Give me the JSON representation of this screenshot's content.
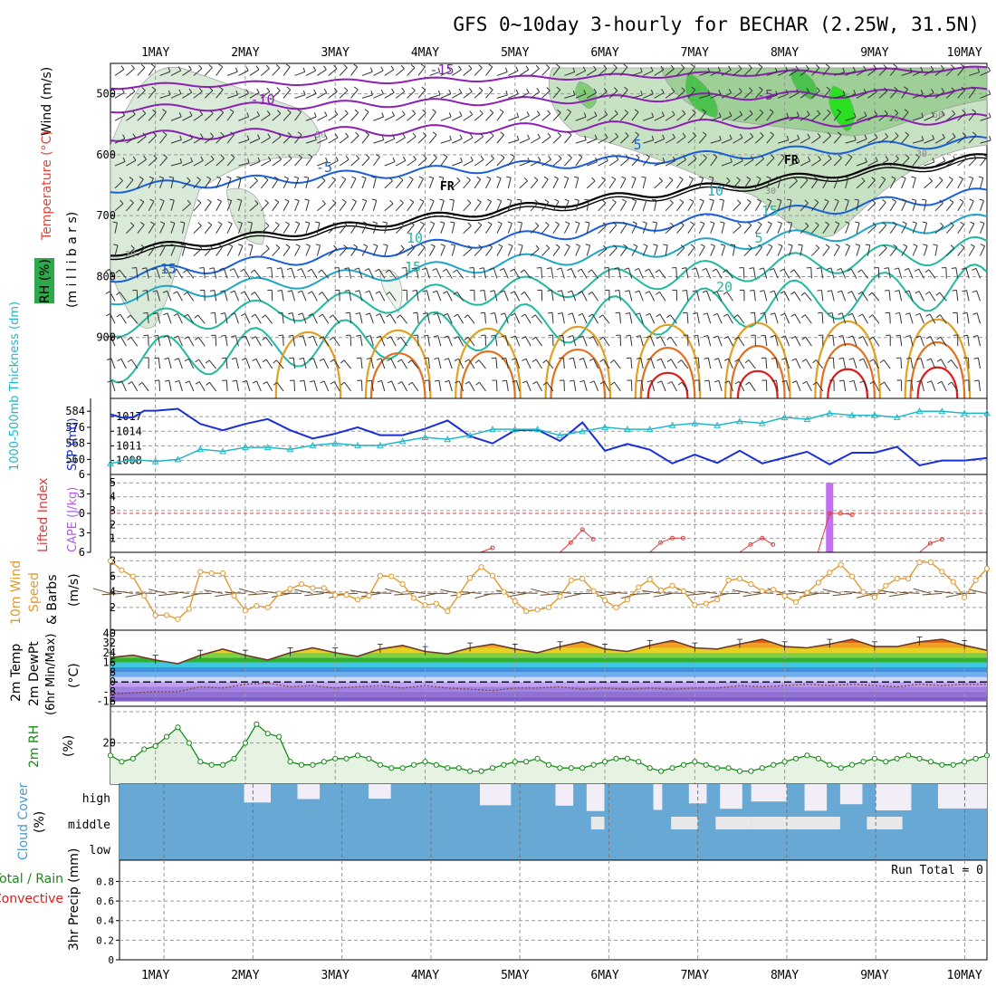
{
  "title": "GFS 0~10day 3-hourly for BECHAR (2.25W, 31.5N)",
  "x_axis": {
    "dates": [
      "1MAY",
      "2MAY",
      "3MAY",
      "4MAY",
      "5MAY",
      "6MAY",
      "7MAY",
      "8MAY",
      "9MAY",
      "10MAY"
    ],
    "start_day": 0.5,
    "end_day": 10.25
  },
  "panels": {
    "upper_air": {
      "ylabel_wind": "Wind (m/s)",
      "ylabel_temp": "Temperature (°C)",
      "ylabel_rh": "RH (%)",
      "ylabel_p": "(m i l l i b a r s)",
      "pressure_ticks": [
        "500",
        "600",
        "700",
        "800",
        "900"
      ],
      "freezing_label": "FR",
      "isotherm_labels": [
        "-15",
        "-10",
        "-5",
        "-5",
        "5",
        "10",
        "10",
        "15",
        "15",
        "20",
        "5",
        "15"
      ],
      "rh_labels": [
        "50",
        "30",
        "30",
        "50",
        "30",
        "50"
      ]
    },
    "slp": {
      "ylabel_thick": "1000-500mb Thickness (dm)",
      "ylabel_slp": "SLP (mb)",
      "thick_ticks": [
        "584",
        "576",
        "568",
        "560"
      ],
      "slp_ticks": [
        "1017",
        "1014",
        "1011",
        "1008"
      ]
    },
    "cape": {
      "ylabel_li": "Lifted Index",
      "ylabel_cape": "CAPE (J/kg)",
      "li_ticks": [
        "-6",
        "-3",
        "0",
        "3",
        "6"
      ],
      "cape_ticks": [
        "5",
        "4",
        "3",
        "2",
        "1"
      ]
    },
    "wind10m": {
      "ylabel_a": "10m Wind",
      "ylabel_b": "Speed",
      "ylabel_c": "& Barbs",
      "ylabel_d": "(m/s)",
      "ticks": [
        "8",
        "6",
        "4",
        "2"
      ]
    },
    "temp2m": {
      "ylabel_a": "2m Temp",
      "ylabel_b": "2m DewPt",
      "ylabel_c": "(6hr Min/Max)",
      "ylabel_d": "(°C)",
      "ticks": [
        "40",
        "32",
        "24",
        "16",
        "8",
        "0",
        "-8",
        "-16"
      ]
    },
    "rh2m": {
      "ylabel_a": "2m RH",
      "ylabel_b": "(%)",
      "ticks": [
        "20"
      ]
    },
    "cloud": {
      "ylabel_a": "Cloud Cover",
      "ylabel_b": "(%)",
      "levels": [
        "high",
        "middle",
        "low"
      ]
    },
    "precip": {
      "ylabel_a": "Total / Rain",
      "ylabel_b": "Convective",
      "ylabel_c": "3hr Precip (mm)",
      "ticks": [
        "0.8",
        "0.6",
        "0.4",
        "0.2",
        "0"
      ],
      "run_total": "Run Total = 0"
    }
  },
  "colors": {
    "freezing": "#000000",
    "neg_isotherm": "#8c1fb4",
    "cool_isotherm": "#1a5fd6",
    "mild_isotherm": "#1fa5c8",
    "warm_isotherm": "#22b8a0",
    "hot_isotherm": "#e0a020",
    "hotter_isotherm": "#e07020",
    "hottest_isotherm": "#e01a1a",
    "slp_line": "#1a2fd8",
    "thickness_line": "#20b8c8",
    "lifted_index": "#e03a3a",
    "cape_bar": "#c070f0",
    "wind_speed": "#e09a30",
    "rh_line": "#1a8a1a",
    "cloud_fill": "#68a8d4"
  },
  "chart_data": [
    {
      "type": "line",
      "title": "",
      "xlabel": "",
      "ylabel": "SLP (mb)",
      "series": [
        {
          "name": "SLP (mb)",
          "x": [
            0.5,
            0.625,
            0.75,
            0.875,
            1.0,
            1.25,
            1.5,
            1.75,
            2.0,
            2.25,
            2.5,
            2.75,
            3.0,
            3.25,
            3.5,
            3.75,
            4.0,
            4.25,
            4.5,
            4.75,
            5.0,
            5.25,
            5.5,
            5.75,
            6.0,
            6.25,
            6.5,
            6.75,
            7.0,
            7.25,
            7.5,
            7.75,
            8.0,
            8.25,
            8.5,
            8.75,
            9.0,
            9.25,
            9.5,
            9.75,
            10.0,
            10.25
          ],
          "values": [
            1017.5,
            1016.8,
            1016.8,
            1018.2,
            1018.2,
            1018.6,
            1015.5,
            1014.2,
            1015.5,
            1016.5,
            1014.2,
            1012.5,
            1013.5,
            1014.8,
            1013.2,
            1013.2,
            1014.5,
            1016.2,
            1013.0,
            1011.5,
            1014.2,
            1014.3,
            1012.0,
            1015.8,
            1010.0,
            1011.4,
            1010.2,
            1007.4,
            1009.2,
            1007.5,
            1010.0,
            1007.4,
            1008.6,
            1009.8,
            1007.2,
            1009.6,
            1009.6,
            1010.8,
            1007.0,
            1008.0,
            1008.0,
            1008.5
          ]
        },
        {
          "name": "1000-500mb Thickness (dm)",
          "x": [
            0.5,
            0.75,
            1.0,
            1.25,
            1.5,
            1.75,
            2.0,
            2.25,
            2.5,
            2.75,
            3.0,
            3.25,
            3.5,
            3.75,
            4.0,
            4.25,
            4.5,
            4.75,
            5.0,
            5.25,
            5.5,
            5.75,
            6.0,
            6.25,
            6.5,
            6.75,
            7.0,
            7.25,
            7.5,
            7.75,
            8.0,
            8.25,
            8.5,
            8.75,
            9.0,
            9.25,
            9.5,
            9.75,
            10.0,
            10.25
          ],
          "values": [
            558,
            560,
            559,
            560,
            565,
            564,
            566,
            566,
            565,
            567,
            568,
            567,
            567,
            569,
            571,
            570,
            572,
            575,
            575,
            575,
            572,
            574,
            576,
            575,
            575,
            577,
            578,
            577,
            579,
            578,
            581,
            580,
            583,
            582,
            582,
            581,
            584,
            584,
            583,
            583
          ]
        }
      ]
    },
    {
      "type": "line",
      "title": "",
      "xlabel": "",
      "ylabel": "Lifted Index",
      "series": [
        {
          "name": "Lifted Index",
          "x": [
            4.62,
            4.75,
            5.5,
            5.62,
            5.75,
            5.87,
            6.5,
            6.62,
            6.75,
            6.87,
            7.5,
            7.62,
            7.75,
            7.87,
            8.37,
            8.5,
            8.62,
            8.75,
            8.87,
            9.5,
            9.62,
            9.75,
            9.87
          ],
          "values": [
            6,
            5.3,
            6,
            4.5,
            2.5,
            4.0,
            6,
            4.5,
            3.8,
            3.8,
            6,
            4.8,
            3.8,
            4.8,
            6,
            0,
            0,
            0.2,
            6,
            6,
            4.6,
            4.0,
            6
          ]
        }
      ],
      "cape_bars": [
        {
          "x": 8.5,
          "value": 5
        }
      ]
    },
    {
      "type": "line",
      "title": "",
      "xlabel": "",
      "ylabel": "(m/s)",
      "series": [
        {
          "name": "Speed",
          "x": [
            0.5,
            0.625,
            0.75,
            0.875,
            1.0,
            1.125,
            1.25,
            1.375,
            1.5,
            1.625,
            1.75,
            1.875,
            2.0,
            2.125,
            2.25,
            2.375,
            2.5,
            2.625,
            2.75,
            2.875,
            3.0,
            3.125,
            3.25,
            3.375,
            3.5,
            3.625,
            3.75,
            3.875,
            4.0,
            4.125,
            4.25,
            4.375,
            4.5,
            4.625,
            4.75,
            4.875,
            5.0,
            5.125,
            5.25,
            5.375,
            5.5,
            5.625,
            5.75,
            5.875,
            6.0,
            6.125,
            6.25,
            6.375,
            6.5,
            6.625,
            6.75,
            6.875,
            7.0,
            7.125,
            7.25,
            7.375,
            7.5,
            7.625,
            7.75,
            7.875,
            8.0,
            8.125,
            8.25,
            8.375,
            8.5,
            8.625,
            8.75,
            8.875,
            9.0,
            9.125,
            9.25,
            9.375,
            9.5,
            9.625,
            9.75,
            9.875,
            10.0,
            10.125,
            10.25
          ],
          "values": [
            8.0,
            6.8,
            6.0,
            3.5,
            1.0,
            1.0,
            0.5,
            1.8,
            6.6,
            6.4,
            6.4,
            3.5,
            1.6,
            2.2,
            2.0,
            3.8,
            4.4,
            5.0,
            4.5,
            4.5,
            3.6,
            3.6,
            3.0,
            3.5,
            6.1,
            6.0,
            5.0,
            3.2,
            2.3,
            2.5,
            1.5,
            3.6,
            5.8,
            7.2,
            6.1,
            4.0,
            2.8,
            1.5,
            1.7,
            2.0,
            3.4,
            5.5,
            5.7,
            4.1,
            2.9,
            2.0,
            3.0,
            4.6,
            5.6,
            4.2,
            4.8,
            4.1,
            2.3,
            2.5,
            3.0,
            5.5,
            5.7,
            5.0,
            4.1,
            4.3,
            3.5,
            2.7,
            3.9,
            5.2,
            6.5,
            7.5,
            6.0,
            4.0,
            3.3,
            4.8,
            5.7,
            5.7,
            7.8,
            7.8,
            6.6,
            5.3,
            3.3,
            5.5,
            7.0
          ]
        }
      ]
    },
    {
      "type": "area",
      "title": "",
      "xlabel": "",
      "ylabel": "(°C)",
      "series": [
        {
          "name": "2m Temp",
          "x": [
            0.5,
            0.75,
            1.0,
            1.25,
            1.5,
            1.75,
            2.0,
            2.25,
            2.5,
            2.75,
            3.0,
            3.25,
            3.5,
            3.75,
            4.0,
            4.25,
            4.5,
            4.75,
            5.0,
            5.25,
            5.5,
            5.75,
            6.0,
            6.25,
            6.5,
            6.75,
            7.0,
            7.25,
            7.5,
            7.75,
            8.0,
            8.25,
            8.5,
            8.75,
            9.0,
            9.25,
            9.5,
            9.75,
            10.0,
            10.25
          ],
          "values": [
            20,
            22,
            18,
            15,
            22,
            27,
            22,
            18,
            24,
            28,
            24,
            21,
            27,
            30,
            25,
            23,
            28,
            31,
            27,
            24,
            29,
            33,
            27,
            25,
            30,
            34,
            28,
            27,
            31,
            35,
            29,
            28,
            31,
            35,
            29,
            29,
            33,
            35,
            30,
            26
          ]
        },
        {
          "name": "2m DewPt",
          "x": [
            0.5,
            0.75,
            1.0,
            1.25,
            1.5,
            1.75,
            2.0,
            2.25,
            2.5,
            2.75,
            3.0,
            3.25,
            3.5,
            3.75,
            4.0,
            4.25,
            4.5,
            4.75,
            5.0,
            5.25,
            5.5,
            5.75,
            6.0,
            6.25,
            6.5,
            6.75,
            7.0,
            7.25,
            7.5,
            7.75,
            8.0,
            8.25,
            8.5,
            8.75,
            9.0,
            9.25,
            9.5,
            9.75,
            10.0,
            10.25
          ],
          "values": [
            -10,
            -9,
            -8,
            -8,
            -4,
            -5,
            -2,
            -1,
            -4,
            -3,
            -5,
            -4,
            -3,
            -5,
            -3,
            -5,
            -6,
            -7,
            -5,
            -5,
            -4,
            -6,
            -5,
            -6,
            -5,
            -6,
            -5,
            -5,
            -3,
            -4,
            -3,
            -2,
            -3,
            -2,
            -3,
            -4,
            -2,
            -3,
            -2,
            -2
          ]
        }
      ]
    },
    {
      "type": "area",
      "title": "",
      "xlabel": "",
      "ylabel": "(%)",
      "series": [
        {
          "name": "2m RH",
          "x": [
            0.5,
            0.625,
            0.75,
            0.875,
            1.0,
            1.125,
            1.25,
            1.375,
            1.5,
            1.625,
            1.75,
            1.875,
            2.0,
            2.125,
            2.25,
            2.375,
            2.5,
            2.625,
            2.75,
            2.875,
            3.0,
            3.125,
            3.25,
            3.375,
            3.5,
            3.625,
            3.75,
            3.875,
            4.0,
            4.125,
            4.25,
            4.375,
            4.5,
            4.625,
            4.75,
            4.875,
            5.0,
            5.125,
            5.25,
            5.375,
            5.5,
            5.625,
            5.75,
            5.875,
            6.0,
            6.125,
            6.25,
            6.375,
            6.5,
            6.625,
            6.75,
            6.875,
            7.0,
            7.125,
            7.25,
            7.375,
            7.5,
            7.625,
            7.75,
            7.875,
            8.0,
            8.125,
            8.25,
            8.375,
            8.5,
            8.625,
            8.75,
            8.875,
            9.0,
            9.125,
            9.25,
            9.375,
            9.5,
            9.625,
            9.75,
            9.875,
            10.0,
            10.125,
            10.25
          ],
          "values": [
            16,
            14,
            15,
            18,
            19,
            22,
            25,
            20,
            14,
            13,
            13,
            15,
            20,
            26,
            23,
            22,
            14,
            13,
            13,
            14,
            15,
            15,
            16,
            15,
            13,
            12,
            12,
            13,
            14,
            13,
            12,
            12,
            11,
            11,
            12,
            13,
            14,
            14,
            15,
            13,
            12,
            12,
            12,
            13,
            14,
            15,
            15,
            14,
            12,
            11,
            12,
            13,
            14,
            13,
            12,
            12,
            11,
            11,
            12,
            13,
            14,
            15,
            16,
            15,
            13,
            12,
            13,
            14,
            15,
            14,
            15,
            16,
            15,
            14,
            13,
            13,
            14,
            15,
            16
          ]
        }
      ]
    },
    {
      "type": "bar",
      "title": "",
      "xlabel": "",
      "ylabel": "3hr Precip (mm)",
      "series": [
        {
          "name": "Total / Rain",
          "values": []
        },
        {
          "name": "Convective",
          "values": []
        }
      ],
      "ylim": [
        0,
        1
      ]
    }
  ]
}
